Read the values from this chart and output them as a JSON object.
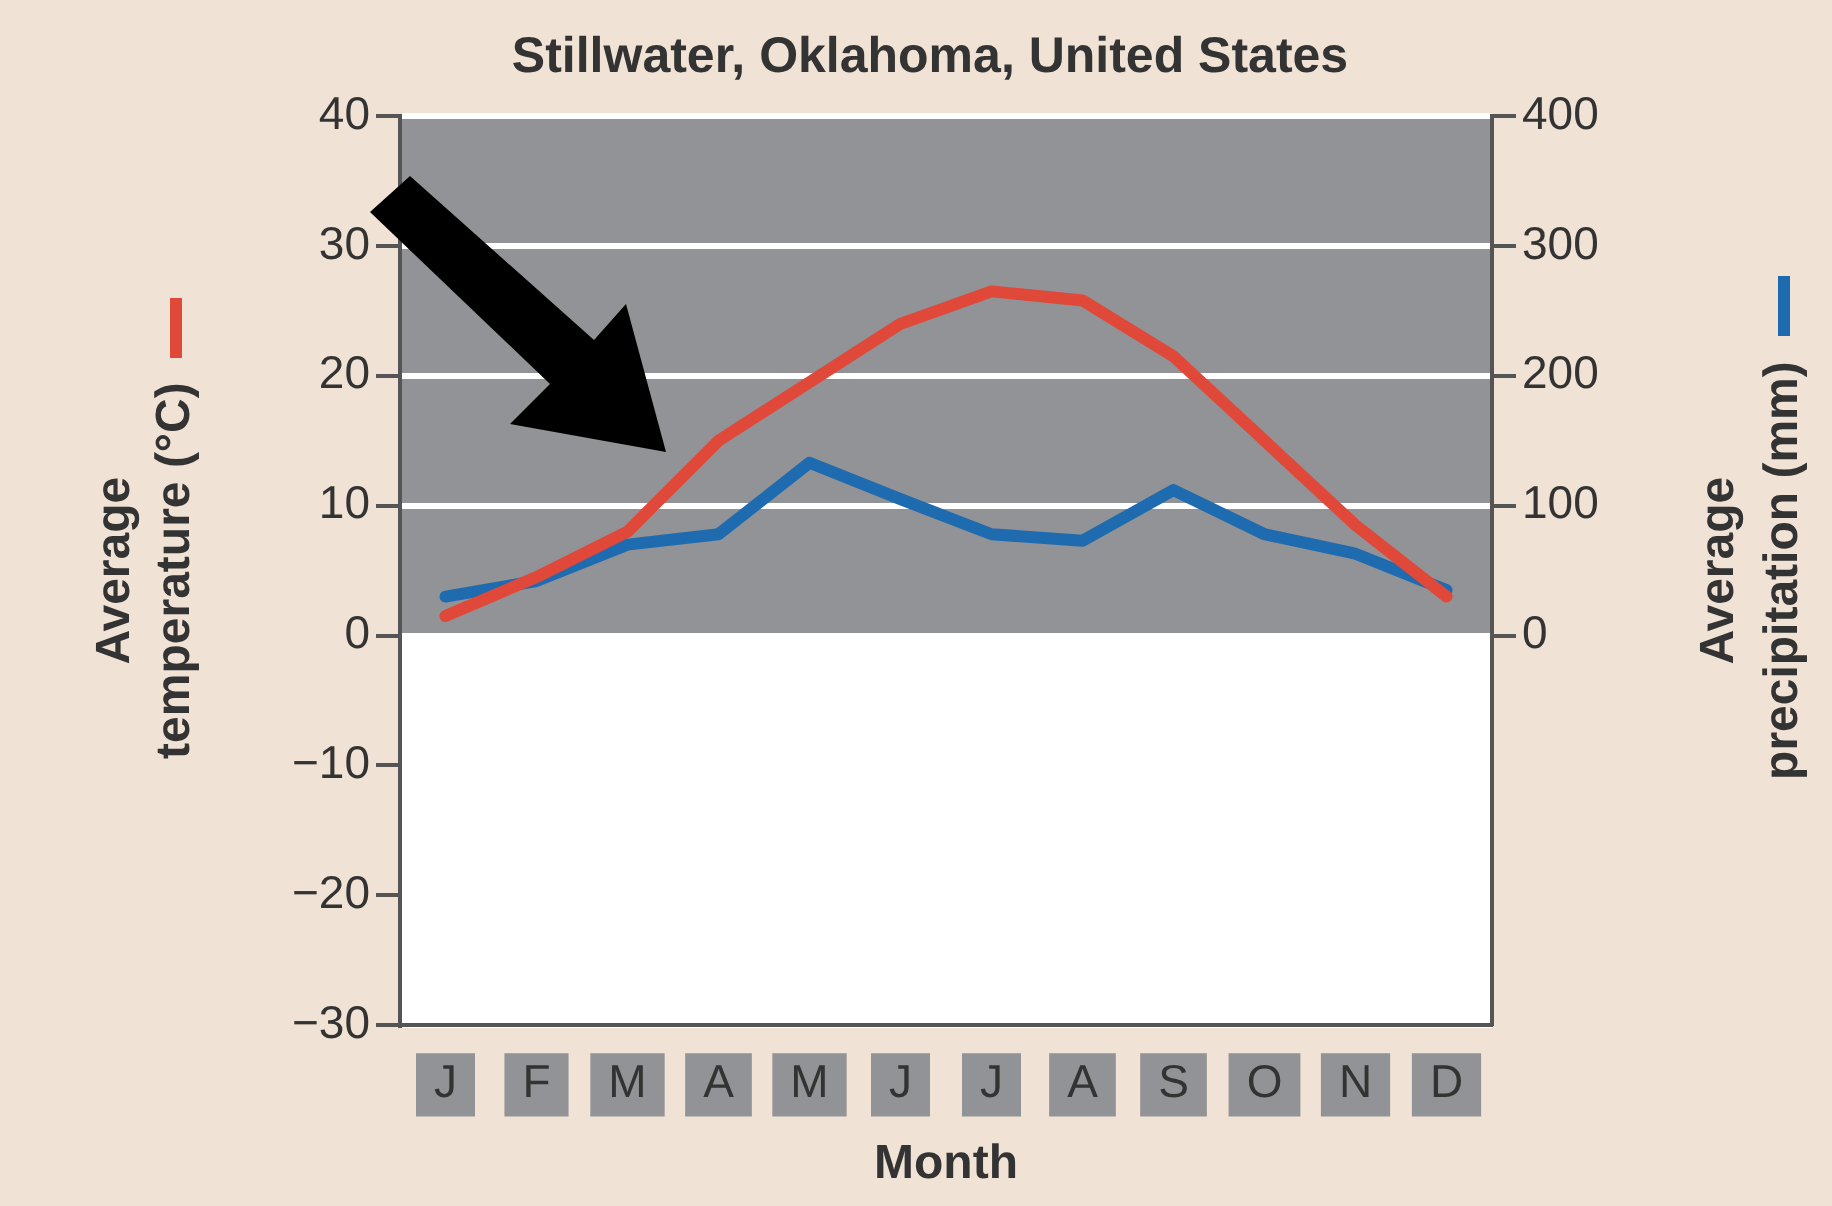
{
  "chart_data": {
    "type": "line",
    "title": "Stillwater, Oklahoma, United States",
    "xlabel": "Month",
    "ylabel": "Average temperature (°C)",
    "y2label": "Average precipitation (mm)",
    "categories": [
      "J",
      "F",
      "M",
      "A",
      "M",
      "J",
      "J",
      "A",
      "S",
      "O",
      "N",
      "D"
    ],
    "series": [
      {
        "color": "#e0483a",
        "values": [
          1.5,
          4.5,
          8,
          15,
          19.5,
          24,
          26.5,
          25.8,
          21.5,
          15,
          8.5,
          3
        ]
      },
      {
        "color": "#1f6bb0",
        "axis": "y2",
        "values": [
          30,
          42,
          70,
          78,
          133,
          105,
          78,
          73,
          112,
          78,
          63,
          35
        ]
      }
    ],
    "ylim": [
      -30,
      40
    ],
    "yticks": [
      -30,
      -20,
      -10,
      0,
      10,
      20,
      30,
      40
    ],
    "y2lim": [
      -300,
      400
    ],
    "y2ticks": [
      0,
      100,
      200,
      300,
      400
    ],
    "bands": [
      {
        "axis": "y",
        "from": 0,
        "to": 40,
        "color": "#929396"
      }
    ],
    "grid": "y",
    "legend": false
  }
}
